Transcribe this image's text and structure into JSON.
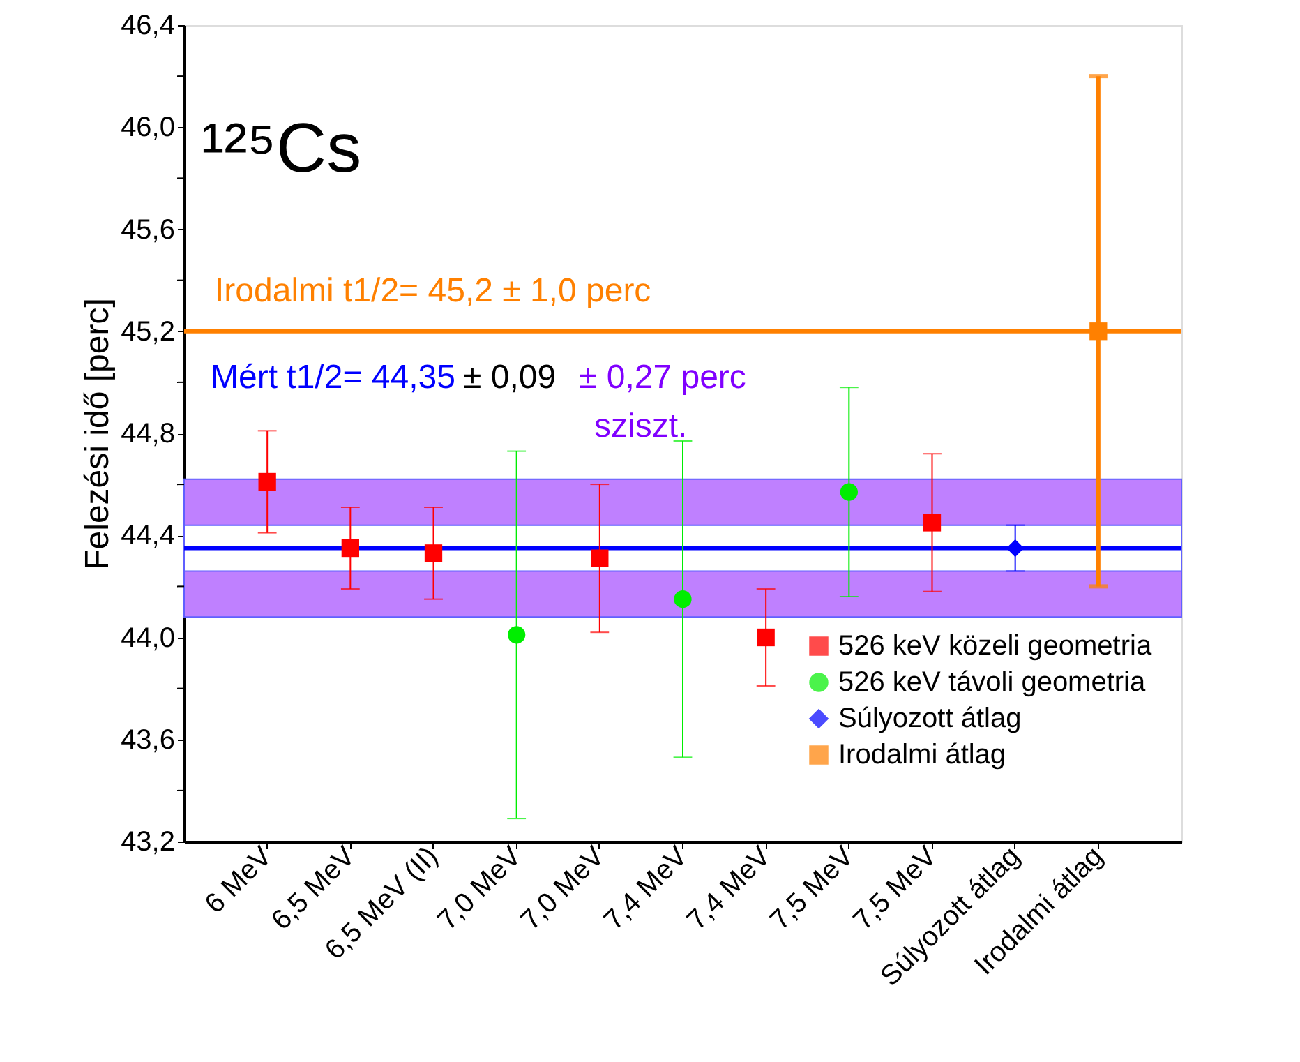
{
  "chart_data": {
    "type": "scatter",
    "title": "¹²⁵Cs",
    "ylabel": "Felezési idő [perc]",
    "categories": [
      "6 MeV",
      "6,5 MeV",
      "6,5 MeV (II)",
      "7,0 MeV",
      "7,0 MeV",
      "7,4 MeV",
      "7,4 MeV",
      "7,5 MeV",
      "7,5 MeV",
      "Súlyozott átlag",
      "Irodalmi átlag"
    ],
    "series": [
      {
        "name": "526 keV közeli geometria",
        "color": "#ff0000",
        "marker": "square",
        "values": [
          44.61,
          44.35,
          44.33,
          null,
          44.31,
          null,
          44.0,
          null,
          44.45,
          null,
          null
        ],
        "errors": [
          0.2,
          0.16,
          0.18,
          null,
          0.29,
          null,
          0.19,
          null,
          0.27,
          null,
          null
        ]
      },
      {
        "name": "526 keV távoli geometria",
        "color": "#00ee00",
        "marker": "circle",
        "values": [
          null,
          null,
          null,
          44.01,
          null,
          44.15,
          null,
          44.57,
          null,
          null,
          null
        ],
        "errors": [
          null,
          null,
          null,
          0.72,
          null,
          0.62,
          null,
          0.41,
          null,
          null,
          null
        ]
      },
      {
        "name": "Súlyozott átlag",
        "color": "#0000ff",
        "marker": "diamond",
        "values": [
          null,
          null,
          null,
          null,
          null,
          null,
          null,
          null,
          null,
          44.35,
          null
        ],
        "errors": [
          null,
          null,
          null,
          null,
          null,
          null,
          null,
          null,
          null,
          0.09,
          null
        ]
      },
      {
        "name": "Irodalmi átlag",
        "color": "#ff8000",
        "marker": "square",
        "values": [
          null,
          null,
          null,
          null,
          null,
          null,
          null,
          null,
          null,
          null,
          45.2
        ],
        "errors": [
          null,
          null,
          null,
          null,
          null,
          null,
          null,
          null,
          null,
          null,
          1.0
        ]
      }
    ],
    "ylim": [
      43.2,
      46.4
    ],
    "yticks": [
      {
        "value": 43.2,
        "label": "43,2"
      },
      {
        "value": 43.4,
        "label": null
      },
      {
        "value": 43.6,
        "label": "43,6"
      },
      {
        "value": 43.8,
        "label": null
      },
      {
        "value": 44.0,
        "label": "44,0"
      },
      {
        "value": 44.2,
        "label": null
      },
      {
        "value": 44.4,
        "label": "44,4"
      },
      {
        "value": 44.6,
        "label": null
      },
      {
        "value": 44.8,
        "label": "44,8"
      },
      {
        "value": 45.0,
        "label": null
      },
      {
        "value": 45.2,
        "label": "45,2"
      },
      {
        "value": 45.4,
        "label": null
      },
      {
        "value": 45.6,
        "label": "45,6"
      },
      {
        "value": 45.8,
        "label": null
      },
      {
        "value": 46.0,
        "label": "46,0"
      },
      {
        "value": 46.2,
        "label": null
      },
      {
        "value": 46.4,
        "label": "46,4"
      }
    ],
    "bands": [
      {
        "axis": "y",
        "from": 44.08,
        "to": 44.62,
        "color": "#bf80ff"
      },
      {
        "axis": "y",
        "from": 44.26,
        "to": 44.44,
        "color": "#ffffff"
      }
    ],
    "ref_lines": [
      {
        "axis": "y",
        "value": 45.2,
        "label": "Irodalmi t1/2= 45,2 ± 1,0 perc",
        "color": "#ff8000"
      },
      {
        "axis": "y",
        "value": 44.35,
        "label": "Mért t1/2= 44,35",
        "color": "#0000ff"
      }
    ],
    "annotations": [
      "± 0,09",
      "± 0,27 perc",
      "sziszt."
    ],
    "legend": "bottom right",
    "grid": false
  }
}
